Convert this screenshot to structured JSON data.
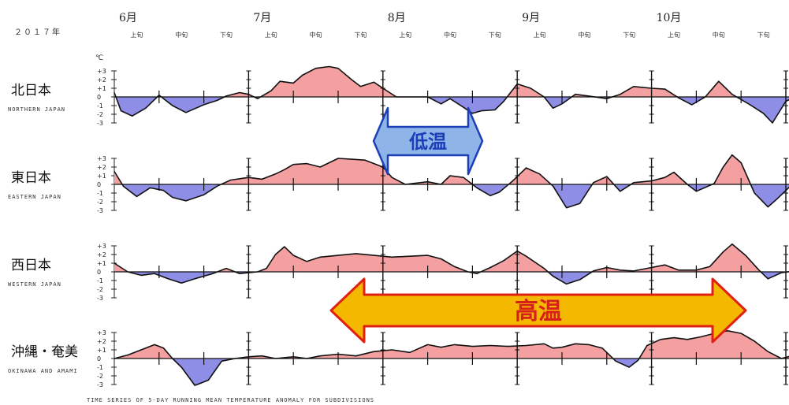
{
  "chart_data": {
    "type": "area",
    "year_label": "２０１７年",
    "unit": "℃",
    "ylim": [
      -3,
      3
    ],
    "y_ticks": [
      "+3",
      "+2",
      "+1",
      "0",
      "-1",
      "-2",
      "-3"
    ],
    "months": [
      "6月",
      "7月",
      "8月",
      "9月",
      "10月"
    ],
    "dekads": [
      "上旬",
      "中旬",
      "下旬"
    ],
    "x_range": [
      0,
      15
    ],
    "regions": [
      {
        "name_jp": "北日本",
        "name_en": "NORTHERN JAPAN",
        "points": [
          [
            0,
            0.5
          ],
          [
            0.15,
            -1.6
          ],
          [
            0.4,
            -2.2
          ],
          [
            0.7,
            -1.3
          ],
          [
            1.0,
            0.2
          ],
          [
            1.3,
            -1.0
          ],
          [
            1.6,
            -1.8
          ],
          [
            2.0,
            -0.9
          ],
          [
            2.3,
            -0.4
          ],
          [
            2.5,
            0.1
          ],
          [
            2.8,
            0.5
          ],
          [
            3.0,
            0.3
          ],
          [
            3.2,
            -0.2
          ],
          [
            3.5,
            0.7
          ],
          [
            3.7,
            1.8
          ],
          [
            4.0,
            1.6
          ],
          [
            4.2,
            2.5
          ],
          [
            4.5,
            3.3
          ],
          [
            4.8,
            3.5
          ],
          [
            5.0,
            3.3
          ],
          [
            5.3,
            2.0
          ],
          [
            5.5,
            1.2
          ],
          [
            5.8,
            1.7
          ],
          [
            6.0,
            1.0
          ],
          [
            6.3,
            0.0
          ],
          [
            6.6,
            0.0
          ],
          [
            7.0,
            0.0
          ],
          [
            7.3,
            -0.8
          ],
          [
            7.5,
            -0.2
          ],
          [
            7.8,
            -1.2
          ],
          [
            8.0,
            -1.9
          ],
          [
            8.2,
            -1.6
          ],
          [
            8.5,
            -1.5
          ],
          [
            8.7,
            -0.5
          ],
          [
            9.0,
            1.5
          ],
          [
            9.3,
            1.0
          ],
          [
            9.6,
            0.0
          ],
          [
            9.8,
            -1.3
          ],
          [
            10.0,
            -0.8
          ],
          [
            10.3,
            0.3
          ],
          [
            10.6,
            0.1
          ],
          [
            11.0,
            -0.2
          ],
          [
            11.3,
            0.3
          ],
          [
            11.6,
            1.2
          ],
          [
            12.0,
            1.0
          ],
          [
            12.3,
            0.9
          ],
          [
            12.6,
            -0.1
          ],
          [
            12.9,
            -0.9
          ],
          [
            13.2,
            0.0
          ],
          [
            13.5,
            1.8
          ],
          [
            13.8,
            0.3
          ],
          [
            14.2,
            -0.9
          ],
          [
            14.5,
            -1.9
          ],
          [
            14.7,
            -3.0
          ],
          [
            15.0,
            -0.5
          ],
          [
            15.3,
            0.2
          ],
          [
            15.6,
            -0.7
          ],
          [
            15.8,
            0.3
          ],
          [
            16.0,
            0.8
          ]
        ]
      },
      {
        "name_jp": "東日本",
        "name_en": "EASTERN JAPAN",
        "points": [
          [
            0,
            1.5
          ],
          [
            0.2,
            -0.2
          ],
          [
            0.5,
            -1.4
          ],
          [
            0.8,
            -0.4
          ],
          [
            1.1,
            -0.7
          ],
          [
            1.3,
            -1.5
          ],
          [
            1.6,
            -1.9
          ],
          [
            2.0,
            -1.2
          ],
          [
            2.3,
            -0.2
          ],
          [
            2.6,
            0.5
          ],
          [
            3.0,
            0.8
          ],
          [
            3.3,
            0.6
          ],
          [
            3.6,
            1.2
          ],
          [
            3.8,
            1.7
          ],
          [
            4.0,
            2.3
          ],
          [
            4.3,
            2.4
          ],
          [
            4.6,
            2.0
          ],
          [
            5.0,
            3.0
          ],
          [
            5.3,
            2.9
          ],
          [
            5.6,
            2.8
          ],
          [
            6.0,
            2.0
          ],
          [
            6.2,
            0.8
          ],
          [
            6.5,
            0.0
          ],
          [
            7.0,
            0.3
          ],
          [
            7.3,
            0.0
          ],
          [
            7.5,
            1.0
          ],
          [
            7.8,
            0.8
          ],
          [
            8.1,
            -0.4
          ],
          [
            8.4,
            -1.3
          ],
          [
            8.6,
            -0.9
          ],
          [
            8.9,
            0.4
          ],
          [
            9.2,
            1.9
          ],
          [
            9.5,
            1.2
          ],
          [
            9.8,
            -0.2
          ],
          [
            10.1,
            -2.7
          ],
          [
            10.4,
            -2.2
          ],
          [
            10.7,
            0.2
          ],
          [
            11.0,
            0.9
          ],
          [
            11.3,
            -0.8
          ],
          [
            11.6,
            0.2
          ],
          [
            12.0,
            0.4
          ],
          [
            12.3,
            0.8
          ],
          [
            12.5,
            1.4
          ],
          [
            12.8,
            0.0
          ],
          [
            13.0,
            -0.8
          ],
          [
            13.4,
            0.1
          ],
          [
            13.6,
            2.0
          ],
          [
            13.8,
            3.4
          ],
          [
            14.0,
            2.5
          ],
          [
            14.3,
            -1.0
          ],
          [
            14.6,
            -2.6
          ],
          [
            14.8,
            -1.7
          ],
          [
            15.1,
            -0.2
          ],
          [
            15.4,
            -0.7
          ],
          [
            15.7,
            0.0
          ],
          [
            16.0,
            -0.5
          ]
        ]
      },
      {
        "name_jp": "西日本",
        "name_en": "WESTERN JAPAN",
        "points": [
          [
            0,
            1.0
          ],
          [
            0.3,
            0.0
          ],
          [
            0.6,
            -0.4
          ],
          [
            0.9,
            -0.2
          ],
          [
            1.2,
            -0.8
          ],
          [
            1.5,
            -1.3
          ],
          [
            1.8,
            -0.8
          ],
          [
            2.2,
            -0.2
          ],
          [
            2.5,
            0.4
          ],
          [
            2.8,
            -0.2
          ],
          [
            3.2,
            0.0
          ],
          [
            3.4,
            0.4
          ],
          [
            3.6,
            2.0
          ],
          [
            3.8,
            2.9
          ],
          [
            4.0,
            1.9
          ],
          [
            4.3,
            1.2
          ],
          [
            4.6,
            1.7
          ],
          [
            5.0,
            1.9
          ],
          [
            5.4,
            2.1
          ],
          [
            5.8,
            1.9
          ],
          [
            6.2,
            1.7
          ],
          [
            6.6,
            1.8
          ],
          [
            7.0,
            1.9
          ],
          [
            7.3,
            1.5
          ],
          [
            7.6,
            0.6
          ],
          [
            7.9,
            0.0
          ],
          [
            8.1,
            -0.2
          ],
          [
            8.4,
            0.5
          ],
          [
            8.7,
            1.3
          ],
          [
            9.0,
            2.4
          ],
          [
            9.2,
            1.8
          ],
          [
            9.6,
            0.4
          ],
          [
            9.8,
            -0.5
          ],
          [
            10.1,
            -1.4
          ],
          [
            10.4,
            -0.9
          ],
          [
            10.7,
            0.1
          ],
          [
            11.0,
            0.5
          ],
          [
            11.3,
            0.2
          ],
          [
            11.6,
            0.1
          ],
          [
            12.0,
            0.5
          ],
          [
            12.3,
            0.8
          ],
          [
            12.6,
            0.2
          ],
          [
            13.0,
            0.2
          ],
          [
            13.3,
            0.6
          ],
          [
            13.6,
            2.3
          ],
          [
            13.8,
            3.2
          ],
          [
            14.1,
            1.9
          ],
          [
            14.4,
            0.2
          ],
          [
            14.6,
            -0.8
          ],
          [
            14.9,
            -0.1
          ],
          [
            15.2,
            0.1
          ],
          [
            15.5,
            -0.4
          ],
          [
            15.8,
            0.4
          ],
          [
            16.0,
            0.2
          ]
        ]
      },
      {
        "name_jp": "沖縄・奄美",
        "name_en": "OKINAWA AND AMAMI",
        "points": [
          [
            0,
            0.0
          ],
          [
            0.3,
            0.4
          ],
          [
            0.6,
            1.0
          ],
          [
            0.9,
            1.6
          ],
          [
            1.1,
            1.2
          ],
          [
            1.3,
            0.0
          ],
          [
            1.5,
            -1.0
          ],
          [
            1.8,
            -3.1
          ],
          [
            2.1,
            -2.5
          ],
          [
            2.4,
            -0.3
          ],
          [
            2.7,
            0.0
          ],
          [
            3.0,
            0.2
          ],
          [
            3.3,
            0.3
          ],
          [
            3.6,
            0.0
          ],
          [
            4.0,
            0.2
          ],
          [
            4.3,
            0.0
          ],
          [
            4.6,
            0.3
          ],
          [
            5.0,
            0.5
          ],
          [
            5.4,
            0.3
          ],
          [
            5.8,
            0.8
          ],
          [
            6.2,
            1.0
          ],
          [
            6.6,
            0.7
          ],
          [
            7.0,
            1.6
          ],
          [
            7.3,
            1.3
          ],
          [
            7.6,
            1.6
          ],
          [
            8.0,
            1.4
          ],
          [
            8.4,
            1.5
          ],
          [
            8.8,
            1.4
          ],
          [
            9.2,
            1.5
          ],
          [
            9.6,
            1.7
          ],
          [
            9.8,
            1.2
          ],
          [
            10.0,
            1.3
          ],
          [
            10.3,
            1.7
          ],
          [
            10.6,
            1.6
          ],
          [
            10.9,
            1.2
          ],
          [
            11.2,
            -0.3
          ],
          [
            11.5,
            -1.0
          ],
          [
            11.7,
            -0.2
          ],
          [
            11.9,
            1.5
          ],
          [
            12.2,
            2.2
          ],
          [
            12.5,
            2.4
          ],
          [
            12.8,
            2.2
          ],
          [
            13.1,
            2.5
          ],
          [
            13.4,
            2.9
          ],
          [
            13.7,
            3.2
          ],
          [
            14.0,
            2.9
          ],
          [
            14.3,
            2.0
          ],
          [
            14.6,
            0.8
          ],
          [
            14.9,
            0.0
          ],
          [
            15.2,
            0.4
          ],
          [
            15.6,
            -0.1
          ],
          [
            16.0,
            0.0
          ]
        ]
      }
    ],
    "annotations": {
      "cold": "低温",
      "warm": "高温"
    },
    "caption": "TIME SERIES OF 5-DAY RUNNING MEAN TEMPERATURE ANOMALY FOR SUBDIVISIONS",
    "colors": {
      "positive": "#f4a0a0",
      "negative": "#8e8ee6",
      "line": "#111111",
      "cold_arrow_fill": "#8fb5e8",
      "cold_arrow_stroke": "#1c3fb8",
      "warm_arrow_fill": "#f5b800",
      "warm_arrow_stroke": "#e02010",
      "warm_text": "#d8201a"
    }
  }
}
